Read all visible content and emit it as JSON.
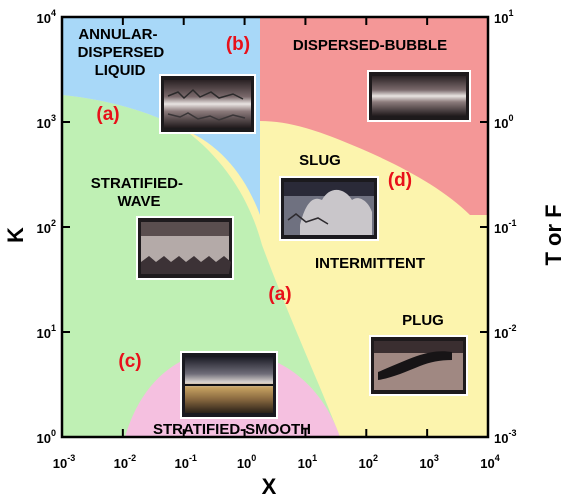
{
  "colors": {
    "annular": "#a8d8f8",
    "dispersed_bubble": "#f49797",
    "stratified_wave": "#bff0b4",
    "intermittent": "#fcf4ad",
    "stratified_smooth": "#f5c0e0",
    "marker": "#e8101a",
    "axis": "#000000"
  },
  "regions": {
    "annular": "ANNULAR-\nDISPERSED\nLIQUID",
    "dispersed_bubble": "DISPERSED-BUBBLE",
    "slug": "SLUG",
    "stratified_wave": "STRATIFIED-\nWAVE",
    "intermittent": "INTERMITTENT",
    "plug": "PLUG",
    "stratified_smooth": "STRATIFIED-SMOOTH"
  },
  "markers": {
    "a_left": "(a)",
    "b": "(b)",
    "d": "(d)",
    "a_center": "(a)",
    "c": "(c)"
  },
  "axes": {
    "x_title": "X",
    "left_title": "K",
    "right_title": "T or F",
    "x_ticks": [
      {
        "base": "10",
        "exp": "-3"
      },
      {
        "base": "10",
        "exp": "-2"
      },
      {
        "base": "10",
        "exp": "-1"
      },
      {
        "base": "10",
        "exp": "0"
      },
      {
        "base": "10",
        "exp": "1"
      },
      {
        "base": "10",
        "exp": "2"
      },
      {
        "base": "10",
        "exp": "3"
      },
      {
        "base": "10",
        "exp": "4"
      }
    ],
    "left_ticks": [
      {
        "base": "10",
        "exp": "0"
      },
      {
        "base": "10",
        "exp": "1"
      },
      {
        "base": "10",
        "exp": "2"
      },
      {
        "base": "10",
        "exp": "3"
      },
      {
        "base": "10",
        "exp": "4"
      }
    ],
    "right_ticks": [
      {
        "base": "10",
        "exp": "-3"
      },
      {
        "base": "10",
        "exp": "-2"
      },
      {
        "base": "10",
        "exp": "-1"
      },
      {
        "base": "10",
        "exp": "0"
      },
      {
        "base": "10",
        "exp": "1"
      }
    ]
  },
  "photos": [
    {
      "name": "annular-photo"
    },
    {
      "name": "dispersed-bubble-photo"
    },
    {
      "name": "slug-photo"
    },
    {
      "name": "stratified-wave-photo"
    },
    {
      "name": "plug-photo"
    },
    {
      "name": "stratified-smooth-photo"
    }
  ]
}
